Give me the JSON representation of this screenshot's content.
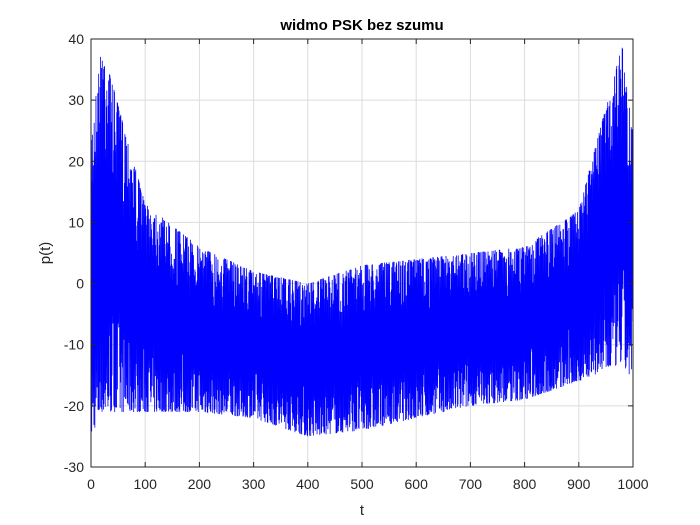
{
  "chart_data": {
    "type": "line",
    "title": "widmo PSK bez szumu",
    "xlabel": "t",
    "ylabel": "p(t)",
    "xlim": [
      0,
      1000
    ],
    "ylim": [
      -30,
      40
    ],
    "xticks": [
      0,
      100,
      200,
      300,
      400,
      500,
      600,
      700,
      800,
      900,
      1000
    ],
    "yticks": [
      -30,
      -20,
      -10,
      0,
      10,
      20,
      30,
      40
    ],
    "grid": true,
    "series": [
      {
        "color": "#0000ff",
        "description_points": {
          "x": [
            0,
            20,
            100,
            200,
            300,
            400,
            500,
            600,
            700,
            800,
            900,
            980,
            1000
          ],
          "upper_envelope": [
            24,
            39,
            13,
            6,
            2,
            0,
            3,
            4,
            5,
            6,
            12,
            39,
            24
          ],
          "lower_envelope": [
            -25,
            -21,
            -21,
            -21,
            -22,
            -25,
            -24,
            -22,
            -20,
            -19,
            -16,
            -13,
            -16
          ]
        }
      }
    ]
  }
}
